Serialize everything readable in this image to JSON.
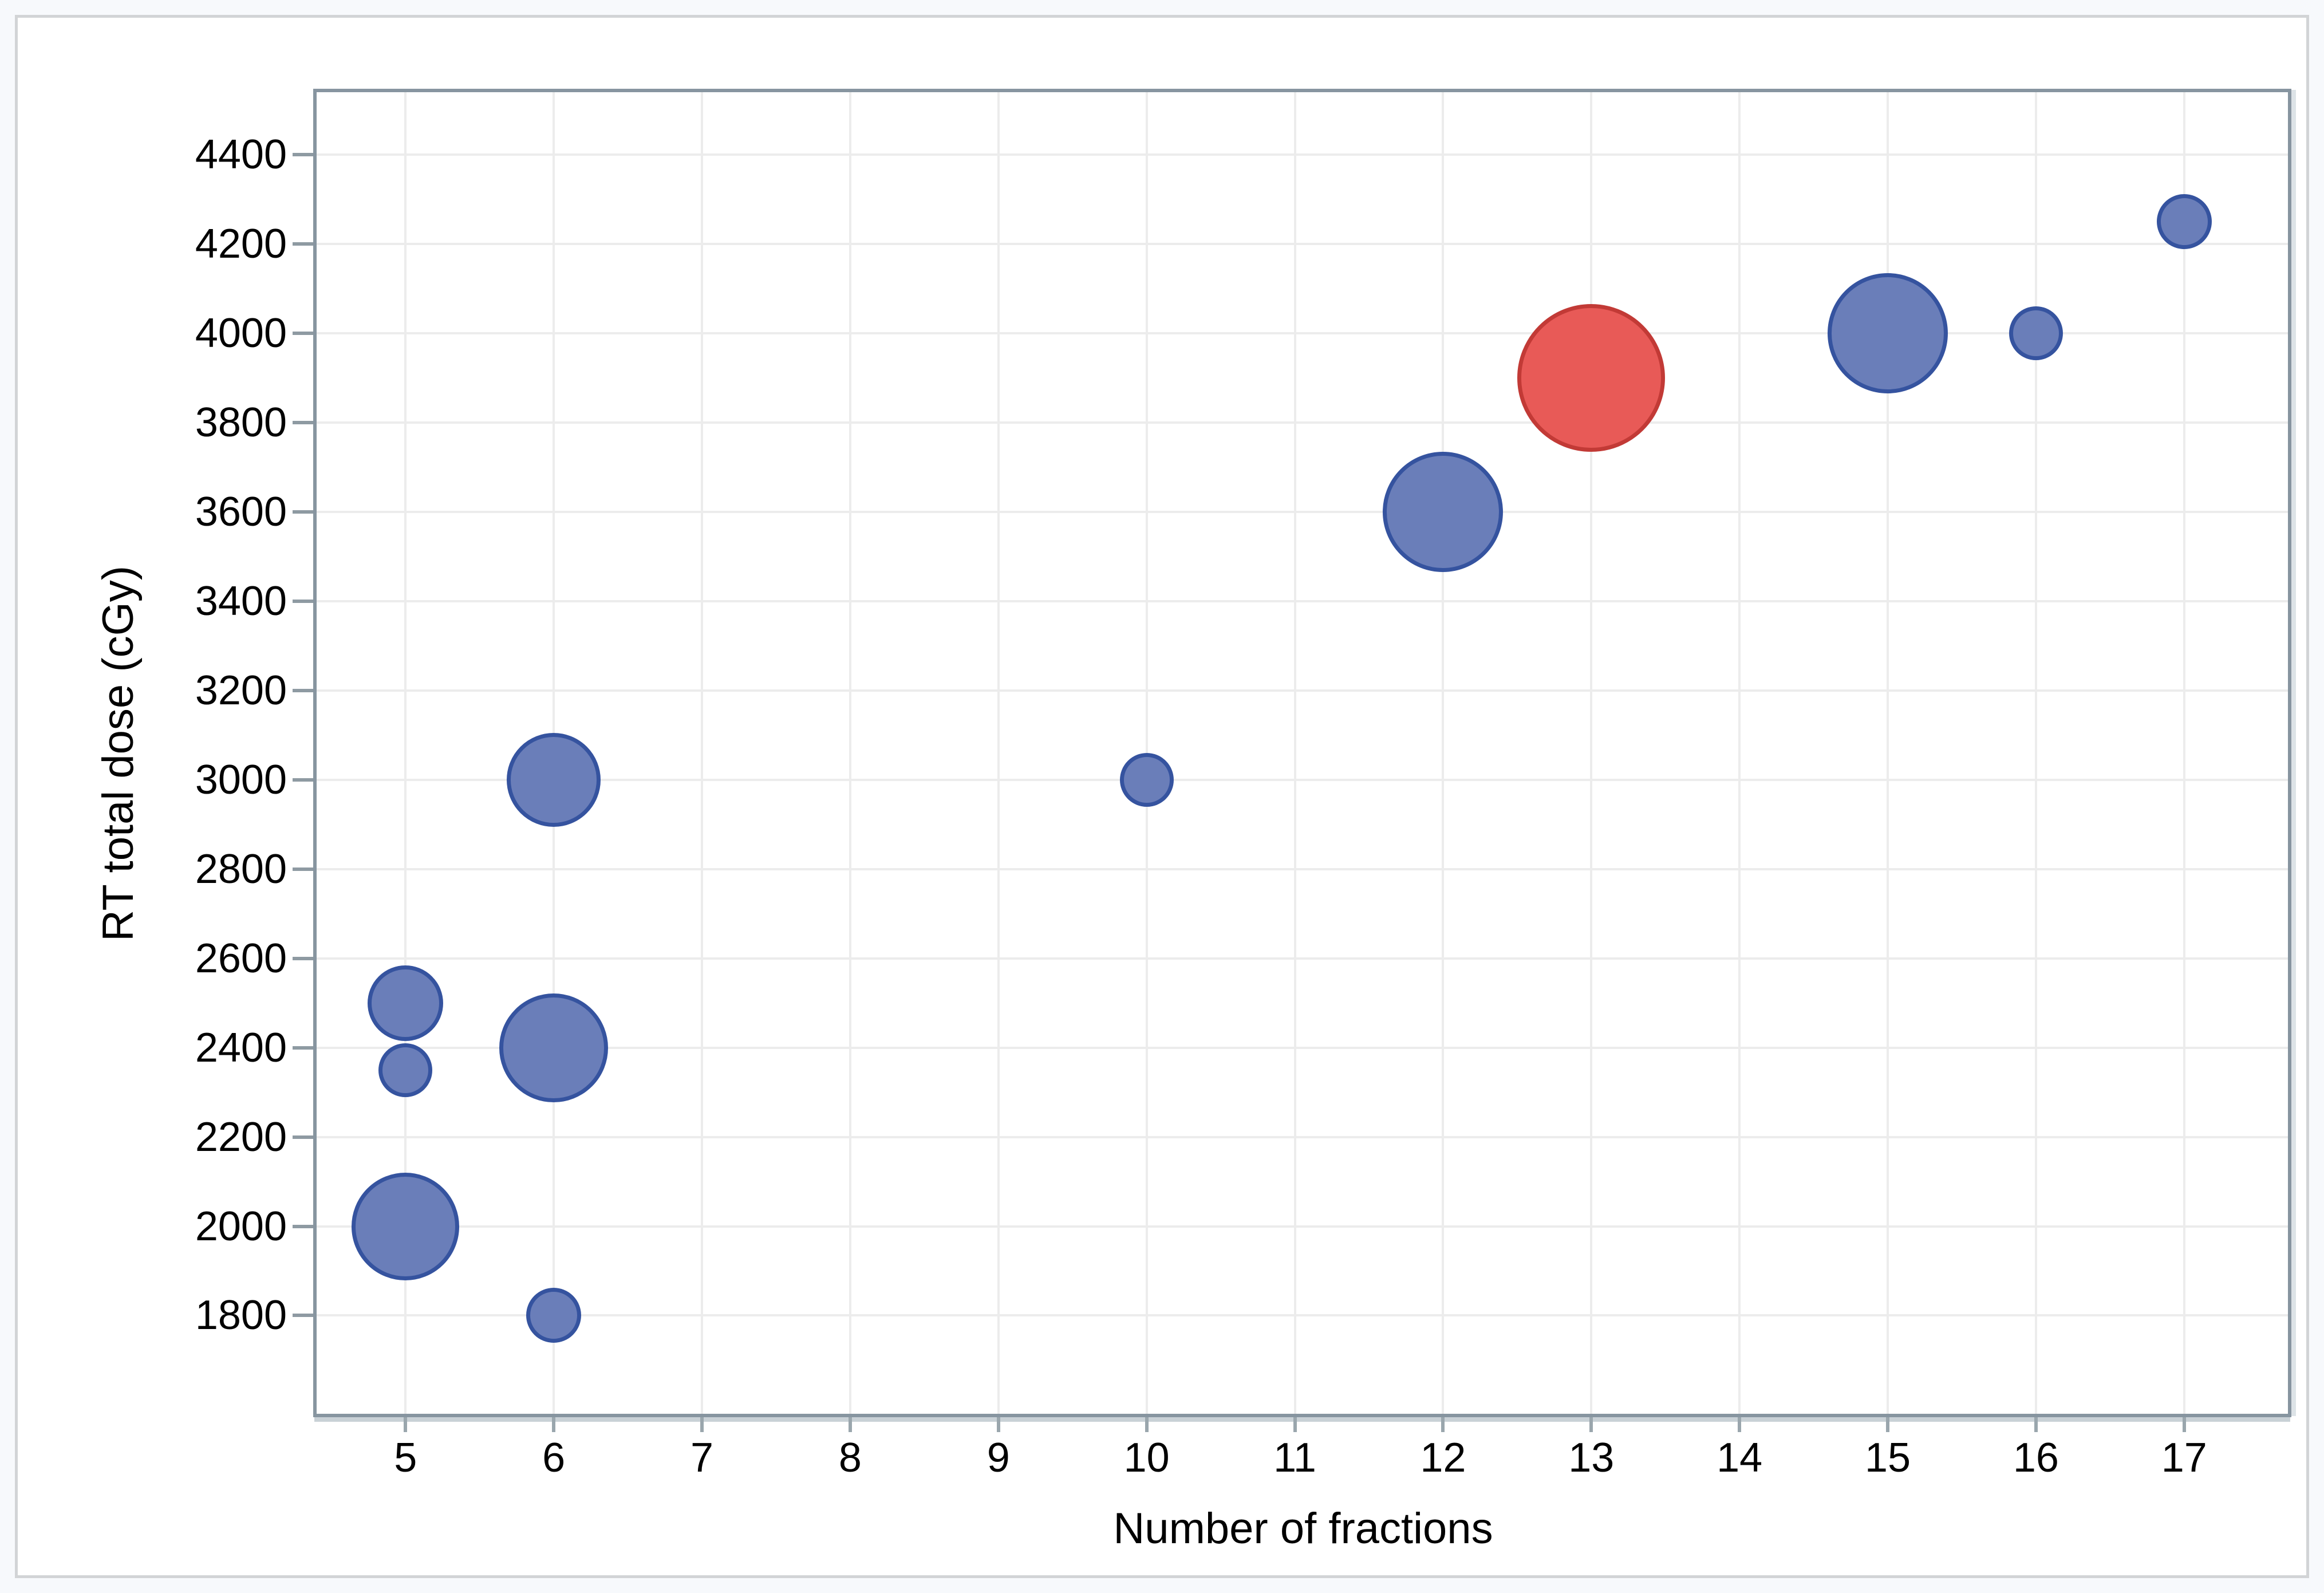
{
  "page": {
    "background": "#f7f9fc",
    "figure_background": "#ffffff",
    "figure_border_color": "#d2d4d6"
  },
  "chart_data": {
    "type": "scatter",
    "subtype": "bubble",
    "title": "",
    "xlabel": "Number of fractions",
    "ylabel": "RT total dose (cGy)",
    "xlim": [
      4.4,
      17.7
    ],
    "ylim": [
      1580,
      4540
    ],
    "x_ticks": [
      5,
      6,
      7,
      8,
      9,
      10,
      11,
      12,
      13,
      14,
      15,
      16,
      17
    ],
    "y_ticks": [
      1800,
      2000,
      2200,
      2400,
      2600,
      2800,
      3000,
      3200,
      3400,
      3600,
      3800,
      4000,
      4200,
      4400
    ],
    "grid": true,
    "legend": "none",
    "points": [
      {
        "x": 5,
        "y": 2500,
        "r": 66,
        "color": "blue"
      },
      {
        "x": 5,
        "y": 2350,
        "r": 47,
        "color": "blue"
      },
      {
        "x": 5,
        "y": 2000,
        "r": 94,
        "color": "blue"
      },
      {
        "x": 6,
        "y": 3000,
        "r": 82,
        "color": "blue"
      },
      {
        "x": 6,
        "y": 2400,
        "r": 95,
        "color": "blue"
      },
      {
        "x": 6,
        "y": 1800,
        "r": 48,
        "color": "blue"
      },
      {
        "x": 10,
        "y": 3000,
        "r": 47,
        "color": "blue"
      },
      {
        "x": 12,
        "y": 3600,
        "r": 105,
        "color": "blue"
      },
      {
        "x": 13,
        "y": 3900,
        "r": 129,
        "color": "red"
      },
      {
        "x": 15,
        "y": 4000,
        "r": 105,
        "color": "blue"
      },
      {
        "x": 16,
        "y": 4000,
        "r": 47,
        "color": "blue"
      },
      {
        "x": 17,
        "y": 4250,
        "r": 48,
        "color": "blue"
      }
    ],
    "colors": {
      "blue_fill": "#6a7eb9",
      "blue_border": "#35539f",
      "red_fill": "#e85a57",
      "red_border": "#c23a36",
      "gridline": "#ececec",
      "frame": "#8795a0",
      "tick": "#8e9aa2",
      "shadow": "#c9d1d6"
    }
  }
}
